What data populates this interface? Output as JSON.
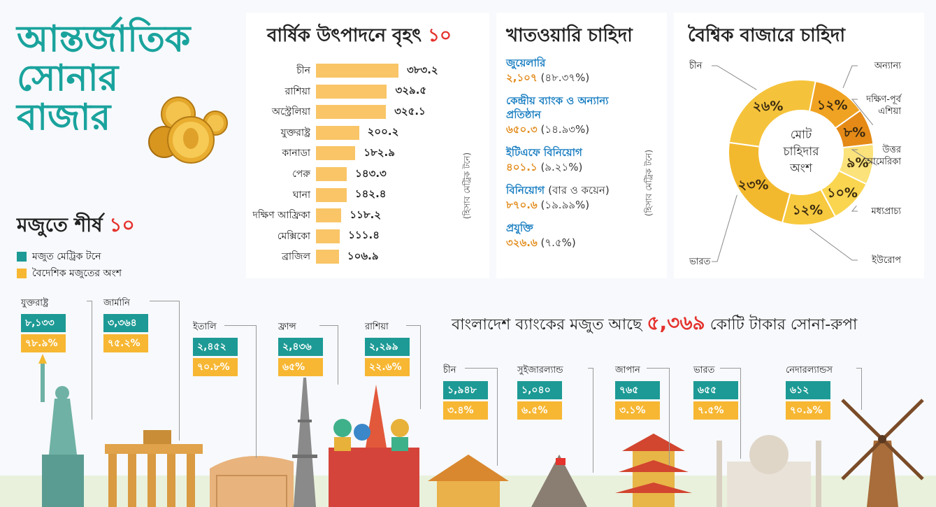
{
  "title": {
    "line1": "আন্তর্জাতিক",
    "line2": "সোনার",
    "line3": "বাজার"
  },
  "production": {
    "title": "বার্ষিক উৎপাদনে বৃহৎ",
    "title_num": "১০",
    "unit": "(হিসাব মেট্রিক টনে)"
  },
  "chart_data": [
    {
      "type": "bar",
      "title": "বার্ষিক উৎপাদনে বৃহৎ ১০",
      "orientation": "horizontal",
      "categories": [
        "চীন",
        "রাশিয়া",
        "অস্ট্রেলিয়া",
        "যুক্তরাষ্ট্র",
        "কানাডা",
        "পেরু",
        "ঘানা",
        "দক্ষিণ আফ্রিকা",
        "মেক্সিকো",
        "ব্রাজিল"
      ],
      "values": [
        383.2,
        329.5,
        325.1,
        200.2,
        182.9,
        143.3,
        142.4,
        118.2,
        111.4,
        106.9
      ],
      "value_labels": [
        "৩৮৩.২",
        "৩২৯.৫",
        "৩২৫.১",
        "২০০.২",
        "১৮২.৯",
        "১৪৩.৩",
        "১৪২.৪",
        "১১৮.২",
        "১১১.৪",
        "১০৬.৯"
      ],
      "ylabel": "(হিসাব মেট্রিক টনে)",
      "color": "#f9c567"
    },
    {
      "type": "pie",
      "title": "বৈশ্বিক বাজারে চাহিদা",
      "center_text": [
        "মোট",
        "চাহিদার",
        "অংশ"
      ],
      "labels": [
        "অন্যান্য",
        "দক্ষিণ-পূর্ব এশিয়া",
        "উত্তর আমেরিকা",
        "মধ্যপ্রাচ্য",
        "ইউরোপ",
        "ভারত",
        "চীন"
      ],
      "values": [
        12,
        8,
        9,
        10,
        12,
        23,
        26
      ],
      "value_labels": [
        "১২%",
        "৮%",
        "৯%",
        "১০%",
        "১২%",
        "২৩%",
        "২৬%"
      ],
      "colors": [
        "#f0a322",
        "#e58a17",
        "#fbe27a",
        "#fad54f",
        "#f7c93e",
        "#f3b92e",
        "#f5c33b"
      ]
    }
  ],
  "sector": {
    "title": "খাতওয়ারি চাহিদা",
    "unit": "(হিসাব মেট্রিক টনে)",
    "items": [
      {
        "name": "জুয়েলারি",
        "value": "২,১০৭",
        "pct": "(৪৮.৩৭%)"
      },
      {
        "name": "কেন্দ্রীয় ব্যাংক ও অন্যান্য প্রতিষ্ঠান",
        "value": "৬৫০.৩",
        "pct": "(১৪.৯৩%)"
      },
      {
        "name": "ইটিএফে বিনিয়োগ",
        "value": "৪০১.১",
        "pct": "(৯.২১%)"
      },
      {
        "name": "বিনিয়োগ",
        "name_note": "(বার ও কয়েন)",
        "value": "৮৭০.৬",
        "pct": "(১৯.৯৯%)"
      },
      {
        "name": "প্রযুক্তি",
        "value": "৩২৬.৬",
        "pct": "(৭.৫%)"
      }
    ]
  },
  "reserves": {
    "title": "মজুতে শীর্ষ",
    "title_num": "১০",
    "legend": [
      {
        "label": "মজুত মেট্রিক টনে",
        "color": "#1d9a95"
      },
      {
        "label": "বৈদেশিক মজুতের অংশ",
        "color": "#f7b733"
      }
    ],
    "countries": [
      {
        "name": "যুক্তরাষ্ট্র",
        "tons": "৮,১৩৩",
        "pct": "৭৮.৯%"
      },
      {
        "name": "জার্মানি",
        "tons": "৩,৩৬৪",
        "pct": "৭৫.২%"
      },
      {
        "name": "ইতালি",
        "tons": "২,৪৫২",
        "pct": "৭০.৮%"
      },
      {
        "name": "ফ্রান্স",
        "tons": "২,৪৩৬",
        "pct": "৬৫%"
      },
      {
        "name": "রাশিয়া",
        "tons": "২,২৯৯",
        "pct": "২২.৬%"
      },
      {
        "name": "চীন",
        "tons": "১,৯৪৮",
        "pct": "৩.৪%"
      },
      {
        "name": "সুইজারল্যান্ড",
        "tons": "১,০৪০",
        "pct": "৬.৫%"
      },
      {
        "name": "জাপান",
        "tons": "৭৬৫",
        "pct": "৩.১%"
      },
      {
        "name": "ভারত",
        "tons": "৬৫৫",
        "pct": "৭.৫%"
      },
      {
        "name": "নেদারল্যান্ডস",
        "tons": "৬১২",
        "pct": "৭০.৯%"
      }
    ]
  },
  "bangladesh": {
    "prefix": "বাংলাদেশ ব্যাংকের মজুত আছে",
    "amount": "৫,৩৬৯",
    "suffix": "কোটি টাকার সোনা-রুপা"
  },
  "colors": {
    "teal": "#1aa39d",
    "gold": "#f7b733",
    "red": "#e5322d",
    "bar": "#f9c567",
    "blue": "#1b7fc2"
  }
}
